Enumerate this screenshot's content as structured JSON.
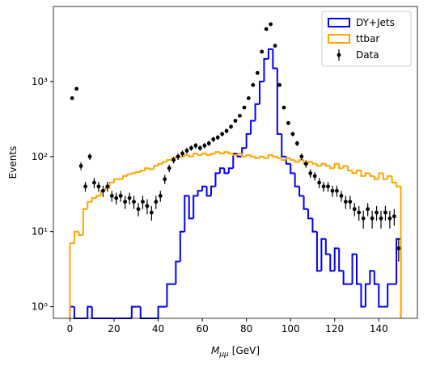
{
  "chart_data": {
    "type": "histogram",
    "xlabel": {
      "symbol": "M",
      "subscript": "μμ",
      "unit": "[GeV]"
    },
    "ylabel": "Events",
    "bins": [
      0,
      2,
      4,
      6,
      8,
      10,
      12,
      14,
      16,
      18,
      20,
      22,
      24,
      26,
      28,
      30,
      32,
      34,
      36,
      38,
      40,
      42,
      44,
      46,
      48,
      50,
      52,
      54,
      56,
      58,
      60,
      62,
      64,
      66,
      68,
      70,
      72,
      74,
      76,
      78,
      80,
      82,
      84,
      86,
      88,
      90,
      92,
      94,
      96,
      98,
      100,
      102,
      104,
      106,
      108,
      110,
      112,
      114,
      116,
      118,
      120,
      122,
      124,
      126,
      128,
      130,
      132,
      134,
      136,
      138,
      140,
      142,
      144,
      146,
      148,
      150
    ],
    "series": [
      {
        "name": "DY+Jets",
        "color": "#0000ff",
        "style": "step",
        "values": [
          1,
          0,
          0,
          0,
          1,
          0,
          0,
          0,
          0,
          0,
          0,
          0,
          0,
          0,
          1,
          1,
          0,
          0,
          0,
          0,
          1,
          1,
          2,
          2,
          4,
          10,
          30,
          15,
          30,
          35,
          40,
          30,
          40,
          60,
          70,
          60,
          70,
          110,
          100,
          130,
          200,
          300,
          500,
          1000,
          2000,
          2700,
          1500,
          200,
          100,
          80,
          60,
          40,
          30,
          20,
          15,
          10,
          3,
          8,
          5,
          3,
          6,
          3,
          2,
          2,
          5,
          2,
          1,
          2,
          3,
          2,
          1,
          1,
          2,
          2,
          8
        ]
      },
      {
        "name": "ttbar",
        "color": "#ffa500",
        "style": "step",
        "values": [
          7,
          10,
          9,
          20,
          25,
          28,
          30,
          35,
          38,
          45,
          50,
          50,
          55,
          58,
          60,
          62,
          65,
          70,
          68,
          75,
          80,
          85,
          90,
          95,
          100,
          100,
          105,
          100,
          110,
          105,
          110,
          105,
          110,
          115,
          110,
          115,
          110,
          105,
          110,
          100,
          105,
          100,
          95,
          100,
          95,
          105,
          100,
          95,
          90,
          95,
          90,
          85,
          90,
          80,
          85,
          80,
          75,
          80,
          75,
          70,
          80,
          70,
          75,
          65,
          60,
          65,
          55,
          60,
          55,
          50,
          60,
          50,
          55,
          45,
          40
        ]
      },
      {
        "name": "Data",
        "color": "#000000",
        "style": "errorbar",
        "values": [
          600,
          800,
          75,
          40,
          100,
          45,
          40,
          35,
          40,
          30,
          28,
          30,
          25,
          28,
          25,
          20,
          25,
          22,
          18,
          25,
          30,
          50,
          70,
          90,
          100,
          110,
          120,
          130,
          140,
          130,
          140,
          150,
          170,
          180,
          200,
          220,
          250,
          300,
          350,
          450,
          600,
          900,
          1300,
          2500,
          5000,
          5800,
          3000,
          900,
          450,
          280,
          200,
          150,
          100,
          80,
          60,
          55,
          45,
          40,
          40,
          35,
          35,
          30,
          25,
          25,
          20,
          18,
          15,
          20,
          15,
          18,
          15,
          18,
          15,
          16,
          6
        ],
        "errors": [
          24,
          28,
          9,
          6,
          10,
          7,
          6,
          6,
          6,
          5,
          5,
          5,
          5,
          5,
          5,
          4,
          5,
          5,
          4,
          5,
          5,
          7,
          8,
          9,
          10,
          10,
          11,
          11,
          12,
          11,
          12,
          12,
          13,
          13,
          14,
          15,
          16,
          17,
          19,
          21,
          24,
          30,
          36,
          50,
          71,
          76,
          55,
          30,
          21,
          17,
          14,
          12,
          10,
          9,
          8,
          7,
          7,
          6,
          6,
          6,
          6,
          5,
          5,
          5,
          4,
          4,
          4,
          4,
          4,
          4,
          4,
          4,
          4,
          4,
          2
        ]
      }
    ],
    "xlim": [
      -7.5,
      157.5
    ],
    "xticks": [
      0,
      20,
      40,
      60,
      80,
      100,
      120,
      140
    ],
    "ylim": [
      0.7,
      10000
    ],
    "yscale": "log",
    "yticks": [
      {
        "value": 1,
        "label": "10⁰"
      },
      {
        "value": 10,
        "label": "10¹"
      },
      {
        "value": 100,
        "label": "10²"
      },
      {
        "value": 1000,
        "label": "10³"
      }
    ],
    "legend": "upper right"
  }
}
